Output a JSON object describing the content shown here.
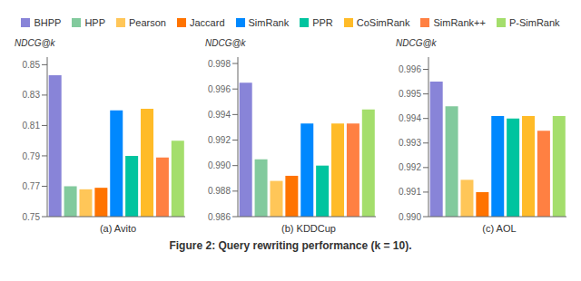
{
  "title": "Figure 2: Query rewriting performance (k = 10).",
  "legend": "top",
  "chart_data": [
    {
      "type": "bar",
      "title": "(a) Avito",
      "ylabel": "NDCG@k",
      "categories": [
        "BHPP",
        "HPP",
        "Pearson",
        "Jaccard",
        "SimRank",
        "PPR",
        "CoSimRank",
        "SimRank++",
        "P-SimRank"
      ],
      "values": [
        0.843,
        0.77,
        0.768,
        0.769,
        0.82,
        0.79,
        0.821,
        0.789,
        0.8
      ],
      "colors": [
        "#8884d8",
        "#82ca9d",
        "#ffc658",
        "#ff7300",
        "#0088fe",
        "#00c49f",
        "#ffbb28",
        "#ff8042",
        "#a4de6c"
      ],
      "ylim": [
        0.75,
        0.855
      ],
      "yticks": [
        0.75,
        0.77,
        0.79,
        0.81,
        0.83,
        0.85
      ],
      "grid": false,
      "tick_labels": "y"
    },
    {
      "type": "bar",
      "title": "(b) KDDCup",
      "ylabel": "NDCG@k",
      "categories": [
        "BHPP",
        "HPP",
        "Pearson",
        "Jaccard",
        "SimRank",
        "PPR",
        "CoSimRank",
        "SimRank++",
        "P-SimRank"
      ],
      "values": [
        0.9965,
        0.9905,
        0.9888,
        0.9892,
        0.9933,
        0.99,
        0.9933,
        0.9933,
        0.9944
      ],
      "colors": [
        "#8884d8",
        "#82ca9d",
        "#ffc658",
        "#ff7300",
        "#0088fe",
        "#00c49f",
        "#ffbb28",
        "#ff8042",
        "#a4de6c"
      ],
      "ylim": [
        0.986,
        0.9985
      ],
      "yticks": [
        0.986,
        0.988,
        {
          "value": 0.99,
          "label": "0.990"
        },
        0.992,
        0.994,
        0.996,
        0.998
      ],
      "grid": false,
      "tick_labels": "y"
    },
    {
      "type": "bar",
      "title": "(c) AOL",
      "ylabel": "NDCG@k",
      "categories": [
        "BHPP",
        "HPP",
        "Pearson",
        "Jaccard",
        "SimRank",
        "PPR",
        "CoSimRank",
        "SimRank++",
        "P-SimRank"
      ],
      "values": [
        0.9955,
        0.9945,
        0.9915,
        0.991,
        0.9941,
        0.994,
        0.9941,
        0.9935,
        0.9941
      ],
      "colors": [
        "#8884d8",
        "#82ca9d",
        "#ffc658",
        "#ff7300",
        "#0088fe",
        "#00c49f",
        "#ffbb28",
        "#ff8042",
        "#a4de6c"
      ],
      "ylim": [
        0.99,
        0.9965
      ],
      "yticks": [
        {
          "value": 0.99,
          "label": "0.990"
        },
        0.991,
        0.992,
        0.993,
        0.994,
        0.995,
        0.996
      ],
      "grid": false,
      "tick_labels": "y"
    }
  ]
}
